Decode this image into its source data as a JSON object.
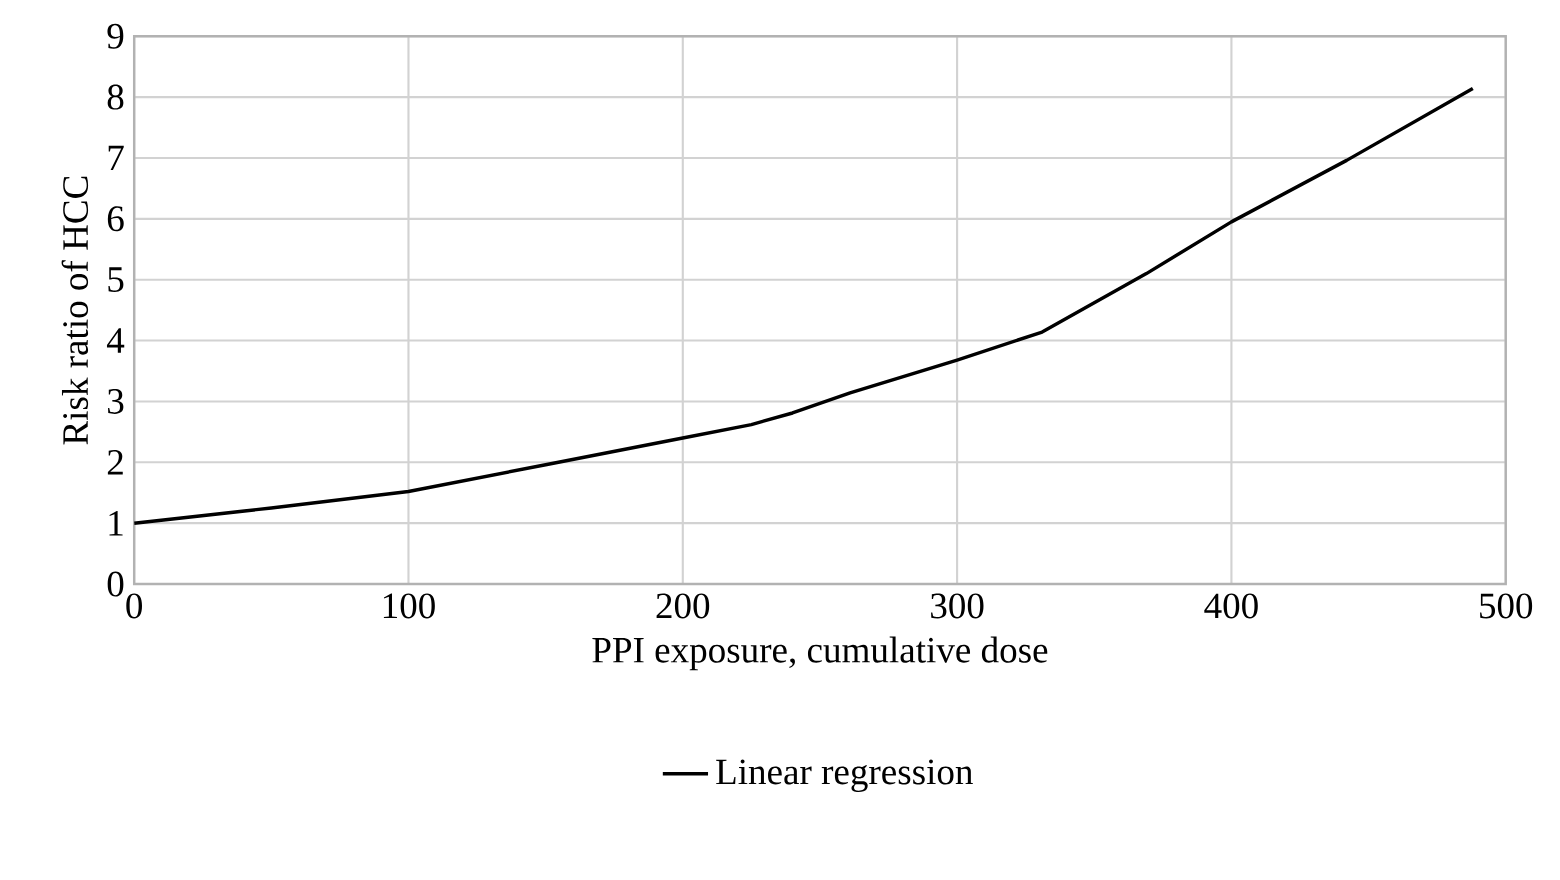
{
  "chart_data": {
    "type": "line",
    "xlabel": "PPI exposure, cumulative dose",
    "ylabel": "Risk ratio of HCC",
    "xlim": [
      0,
      500
    ],
    "xticks": [
      0,
      100,
      200,
      300,
      400,
      500
    ],
    "ylim": [
      0,
      9
    ],
    "yticks": [
      0,
      1,
      2,
      3,
      4,
      5,
      6,
      7,
      8,
      9
    ],
    "grid": true,
    "legend": "bottom",
    "marker": "none",
    "line_style": "solid",
    "series": [
      {
        "name": "Linear regression",
        "color": "#000000",
        "x": [
          0,
          50,
          100,
          150,
          200,
          225,
          240,
          261,
          300,
          331,
          369,
          400,
          442,
          488
        ],
        "values": [
          1,
          1.25,
          1.52,
          1.96,
          2.4,
          2.62,
          2.81,
          3.14,
          3.68,
          4.14,
          5.1,
          5.95,
          6.96,
          8.14
        ]
      }
    ]
  }
}
